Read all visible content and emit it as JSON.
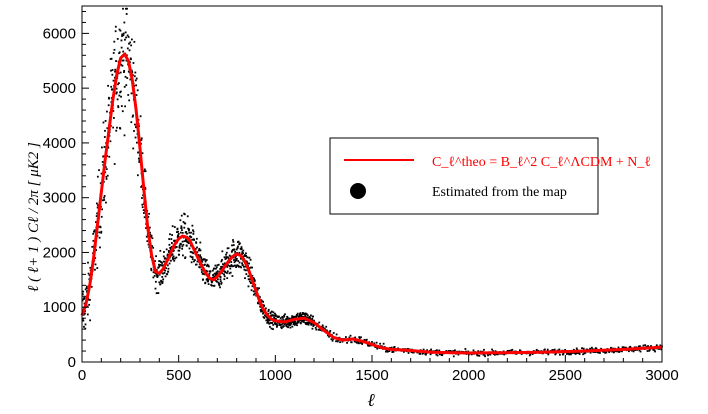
{
  "chart_data": {
    "type": "scatter",
    "xlabel": "ℓ",
    "ylabel": "ℓ ( ℓ+ 1 ) Cℓ / 2π   [ μK2 ]",
    "xlim": [
      0,
      3000
    ],
    "ylim": [
      0,
      6500
    ],
    "x_ticks": [
      "0",
      "500",
      "1000",
      "1500",
      "2000",
      "2500",
      "3000"
    ],
    "y_ticks": [
      "0",
      "1000",
      "2000",
      "3000",
      "4000",
      "5000",
      "6000"
    ],
    "grid": false,
    "legend_position": "right",
    "colors": {
      "theory": "#ff0000",
      "data": "#000000"
    },
    "series": [
      {
        "kind": "line",
        "legend": "C_ℓ^theo = B_ℓ^2 C_ℓ^ΛCDM + N_ℓ",
        "x": [
          0,
          20,
          40,
          60,
          80,
          100,
          120,
          140,
          160,
          180,
          200,
          220,
          240,
          260,
          280,
          300,
          320,
          340,
          360,
          380,
          400,
          420,
          440,
          460,
          480,
          500,
          520,
          540,
          560,
          580,
          600,
          620,
          640,
          660,
          680,
          700,
          720,
          740,
          760,
          780,
          800,
          820,
          840,
          860,
          880,
          900,
          920,
          940,
          960,
          980,
          1000,
          1050,
          1100,
          1150,
          1200,
          1250,
          1300,
          1350,
          1400,
          1450,
          1500,
          1550,
          1600,
          1700,
          1800,
          1900,
          2000,
          2200,
          2400,
          2600,
          2800,
          3000
        ],
        "y": [
          850,
          1050,
          1400,
          1900,
          2500,
          3100,
          3700,
          4250,
          4800,
          5250,
          5550,
          5620,
          5500,
          5150,
          4600,
          3900,
          3150,
          2450,
          1950,
          1650,
          1620,
          1700,
          1850,
          2000,
          2150,
          2250,
          2300,
          2280,
          2200,
          2050,
          1900,
          1750,
          1620,
          1530,
          1500,
          1560,
          1650,
          1750,
          1850,
          1930,
          1970,
          1950,
          1850,
          1700,
          1500,
          1300,
          1100,
          950,
          850,
          780,
          750,
          730,
          780,
          800,
          720,
          580,
          450,
          400,
          420,
          380,
          320,
          260,
          230,
          210,
          180,
          170,
          165,
          170,
          180,
          200,
          230,
          270
        ]
      },
      {
        "kind": "scatter",
        "legend": "Estimated from the map",
        "scatter_note": "points scattered around the theory curve; scatter largest near the first peak"
      }
    ]
  }
}
